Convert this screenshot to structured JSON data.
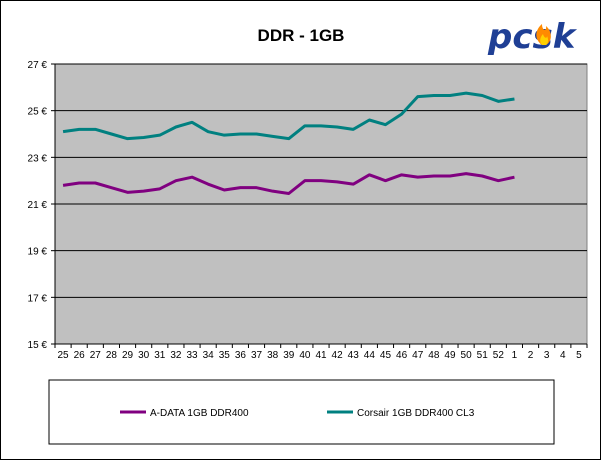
{
  "chart_data": {
    "type": "line",
    "title": "DDR - 1GB",
    "categories": [
      "25",
      "26",
      "27",
      "28",
      "29",
      "30",
      "31",
      "32",
      "33",
      "34",
      "35",
      "36",
      "37",
      "38",
      "39",
      "40",
      "41",
      "42",
      "43",
      "44",
      "45",
      "46",
      "47",
      "48",
      "49",
      "50",
      "51",
      "52",
      "1",
      "2",
      "3",
      "4",
      "5"
    ],
    "ylim": [
      15,
      27
    ],
    "yticks": [
      15,
      17,
      19,
      21,
      23,
      25,
      27
    ],
    "yunit": " €",
    "grid": true,
    "plot_background": "#c0c0c0",
    "legend_position": "bottom",
    "series": [
      {
        "name": "A-DATA 1GB DDR400",
        "color": "#800080",
        "values": [
          21.8,
          21.9,
          21.9,
          21.7,
          21.5,
          21.55,
          21.65,
          22.0,
          22.15,
          21.85,
          21.6,
          21.7,
          21.7,
          21.55,
          21.45,
          22.0,
          22.0,
          21.95,
          21.85,
          22.25,
          22.0,
          22.25,
          22.15,
          22.2,
          22.2,
          22.3,
          22.2,
          22.0,
          22.15,
          null,
          null,
          null,
          null
        ]
      },
      {
        "name": "Corsair 1GB DDR400 CL3",
        "color": "#008080",
        "values": [
          24.1,
          24.2,
          24.2,
          24.0,
          23.8,
          23.85,
          23.95,
          24.3,
          24.5,
          24.1,
          23.95,
          24.0,
          24.0,
          23.9,
          23.8,
          24.35,
          24.35,
          24.3,
          24.2,
          24.6,
          24.4,
          24.85,
          25.6,
          25.65,
          25.65,
          25.75,
          25.65,
          25.4,
          25.5,
          null,
          null,
          null,
          null
        ]
      }
    ]
  },
  "logo": {
    "text": "pcsk",
    "colors": {
      "letters": "#1f3f95",
      "flame": "#ff8a00"
    }
  }
}
